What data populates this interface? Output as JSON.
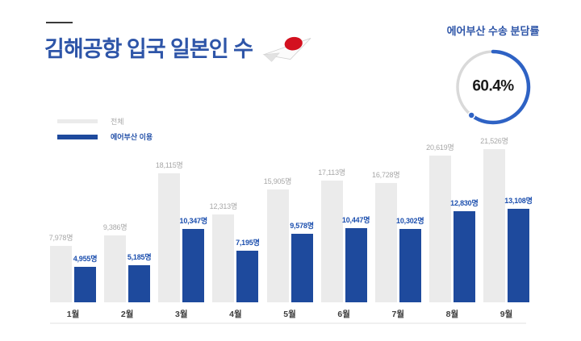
{
  "header": {
    "title": "김해공항 입국 일본인 수",
    "title_color": "#2e55a8",
    "icon": "japan-flag-paper-plane-icon"
  },
  "share_donut": {
    "title": "에어부산 수송 분담률",
    "percent": 60.4,
    "percent_label": "60.4%",
    "arc_color": "#2e62c4",
    "track_color": "#d9d9d9"
  },
  "chart_data": {
    "type": "bar",
    "title": "김해공항 입국 일본인 수",
    "categories": [
      "1월",
      "2월",
      "3월",
      "4월",
      "5월",
      "6월",
      "7월",
      "8월",
      "9월"
    ],
    "series": [
      {
        "name": "전체",
        "color": "#ebebeb",
        "label_color": "#a7a7a7",
        "values": [
          7978,
          9386,
          18115,
          12313,
          15905,
          17113,
          16728,
          20619,
          21526
        ]
      },
      {
        "name": "에어부산 이용",
        "color": "#1e4a9d",
        "label_color": "#1c4fae",
        "values": [
          4955,
          5185,
          10347,
          7195,
          9578,
          10447,
          10302,
          12830,
          13108
        ]
      }
    ],
    "value_suffix": "명",
    "xlabel": "",
    "ylabel": "",
    "ylim": [
      0,
      21526
    ],
    "grid": false,
    "legend_position": "top-left"
  }
}
